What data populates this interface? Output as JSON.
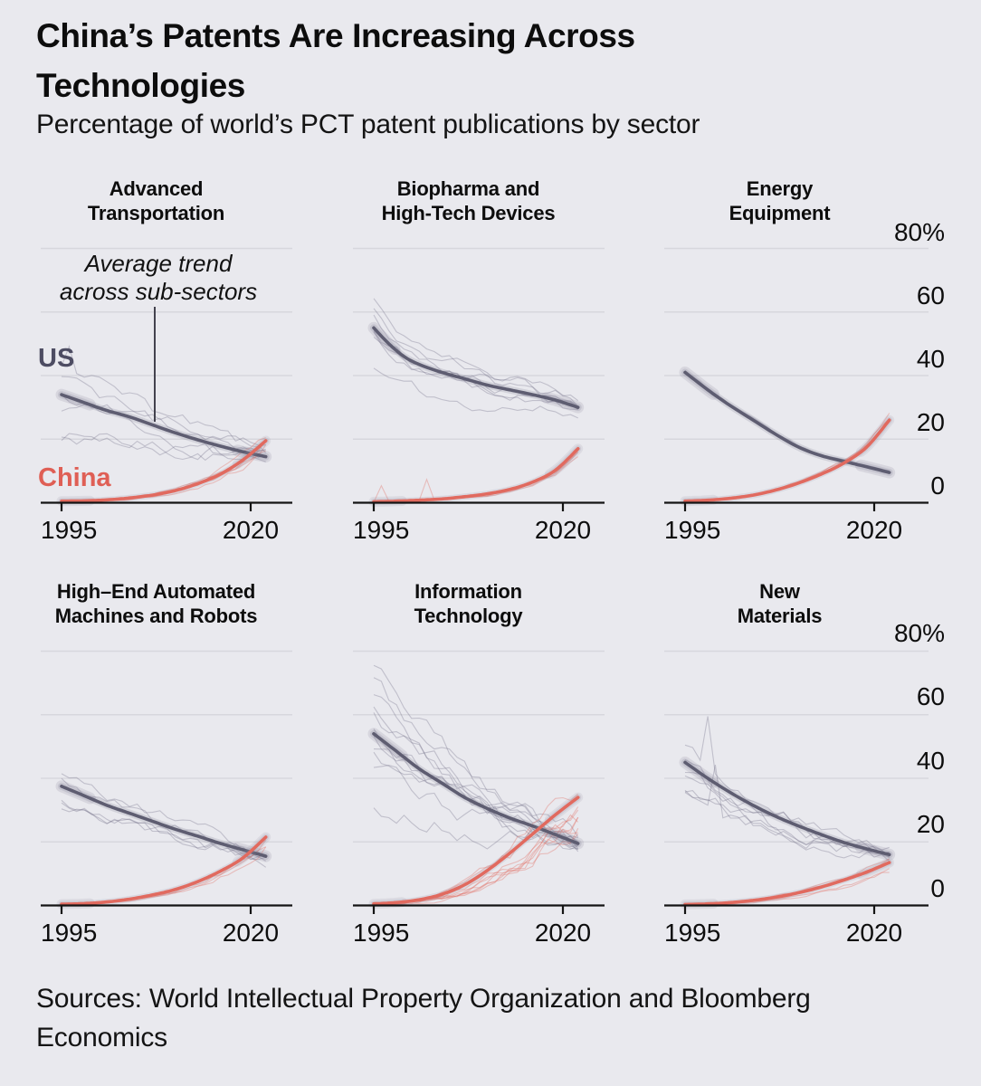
{
  "header": {
    "title": "China’s Patents Are Increasing Across Technologies",
    "subtitle": "Percentage of world’s PCT patent publications by sector"
  },
  "legend": {
    "us_label": "US",
    "china_label": "China"
  },
  "annotation": {
    "line1": "Average trend",
    "line2": "across sub-sectors"
  },
  "footer": {
    "sources": "Sources: World Intellectual Property Organization and Bloomberg Economics"
  },
  "axis": {
    "x_ticks": [
      "1995",
      "2020"
    ],
    "y_ticks": [
      "80%",
      "60",
      "40",
      "20",
      "0"
    ],
    "x_range": [
      1995,
      2022
    ],
    "y_range_pct": [
      0,
      80
    ],
    "gridlines_pct": [
      20,
      40,
      60,
      80
    ],
    "legend_position": "left-of-first-panel",
    "grid": "horizontal-only"
  },
  "colors": {
    "background": "#e9e9ee",
    "gridline": "#d7d7dd",
    "axis": "#141414",
    "text": "#0d0d0d",
    "us_trend": "#5e5d71",
    "us_label": "#4d4c62",
    "us_subsector": "rgba(98,97,122,0.30)",
    "us_band": "rgba(122,121,142,0.20)",
    "china_trend": "#e16a5f",
    "china_label": "#df5f55",
    "china_subsector": "rgba(226,112,102,0.38)",
    "china_band": "rgba(142,141,160,0.18)"
  },
  "chart_data": [
    {
      "type": "line",
      "title_lines": [
        "Advanced",
        "Transportation"
      ],
      "series": [
        {
          "name": "US",
          "points": [
            [
              1995,
              34
            ],
            [
              1998,
              31.5
            ],
            [
              2001,
              29
            ],
            [
              2004,
              27
            ],
            [
              2007,
              24.5
            ],
            [
              2010,
              22
            ],
            [
              2013,
              19.8
            ],
            [
              2016,
              17.8
            ],
            [
              2019,
              16
            ],
            [
              2022,
              14.5
            ]
          ]
        },
        {
          "name": "China",
          "points": [
            [
              1995,
              0.5
            ],
            [
              1998,
              0.6
            ],
            [
              2001,
              0.9
            ],
            [
              2004,
              1.5
            ],
            [
              2007,
              2.4
            ],
            [
              2010,
              3.8
            ],
            [
              2013,
              6
            ],
            [
              2016,
              9
            ],
            [
              2019,
              13.5
            ],
            [
              2022,
              19.5
            ]
          ]
        }
      ],
      "subsectors": {
        "seed": 7,
        "us": {
          "count": 6,
          "fmin": 0.62,
          "fmax": 1.28,
          "jitter": 2.0,
          "spike_prob": 0.03,
          "spike_amp": 12
        },
        "china": {
          "count": 5,
          "fmin": 0.5,
          "fmax": 1.35,
          "jitter": 0.8,
          "spike_prob": 0,
          "spike_amp": 0
        }
      }
    },
    {
      "type": "line",
      "title_lines": [
        "Biopharma and",
        "High-Tech Devices"
      ],
      "series": [
        {
          "name": "US",
          "points": [
            [
              1995,
              55
            ],
            [
              1997,
              50
            ],
            [
              1999,
              46
            ],
            [
              2001,
              43.5
            ],
            [
              2004,
              41
            ],
            [
              2007,
              39
            ],
            [
              2010,
              37
            ],
            [
              2013,
              35.5
            ],
            [
              2016,
              34
            ],
            [
              2019,
              32.3
            ],
            [
              2022,
              30
            ]
          ]
        },
        {
          "name": "China",
          "points": [
            [
              1995,
              0.3
            ],
            [
              1998,
              0.5
            ],
            [
              2001,
              0.8
            ],
            [
              2004,
              1.2
            ],
            [
              2007,
              1.9
            ],
            [
              2010,
              2.8
            ],
            [
              2013,
              4.2
            ],
            [
              2016,
              6.5
            ],
            [
              2019,
              10.2
            ],
            [
              2022,
              17
            ]
          ]
        }
      ],
      "subsectors": {
        "seed": 11,
        "us": {
          "count": 7,
          "fmin": 0.7,
          "fmax": 1.18,
          "jitter": 1.6,
          "spike_prob": 0,
          "spike_amp": 0
        },
        "china": {
          "count": 3,
          "fmin": 0.75,
          "fmax": 1.2,
          "jitter": 0.5,
          "spike_prob": 0.06,
          "spike_amp": 9
        }
      }
    },
    {
      "type": "line",
      "title_lines": [
        "Energy",
        "Equipment"
      ],
      "series": [
        {
          "name": "US",
          "points": [
            [
              1995,
              41
            ],
            [
              1998,
              35.5
            ],
            [
              2001,
              30.5
            ],
            [
              2004,
              26
            ],
            [
              2007,
              21.5
            ],
            [
              2010,
              17.5
            ],
            [
              2013,
              14.8
            ],
            [
              2016,
              13
            ],
            [
              2019,
              11.3
            ],
            [
              2022,
              9.5
            ]
          ]
        },
        {
          "name": "China",
          "points": [
            [
              1995,
              0.5
            ],
            [
              1998,
              0.8
            ],
            [
              2001,
              1.4
            ],
            [
              2004,
              2.4
            ],
            [
              2007,
              4
            ],
            [
              2010,
              6.2
            ],
            [
              2013,
              9
            ],
            [
              2016,
              12.5
            ],
            [
              2019,
              17.5
            ],
            [
              2022,
              26
            ]
          ]
        }
      ],
      "subsectors": {
        "seed": 3,
        "us": {
          "count": 2,
          "fmin": 0.95,
          "fmax": 1.05,
          "jitter": 0.4,
          "spike_prob": 0,
          "spike_amp": 0
        },
        "china": {
          "count": 2,
          "fmin": 0.9,
          "fmax": 1.1,
          "jitter": 0.3,
          "spike_prob": 0,
          "spike_amp": 0
        }
      }
    },
    {
      "type": "line",
      "title_lines": [
        "High–End Automated",
        "Machines and Robots"
      ],
      "series": [
        {
          "name": "US",
          "points": [
            [
              1995,
              37.5
            ],
            [
              1998,
              34.5
            ],
            [
              2001,
              31.5
            ],
            [
              2004,
              29
            ],
            [
              2007,
              26.5
            ],
            [
              2010,
              24
            ],
            [
              2013,
              21.8
            ],
            [
              2016,
              19.5
            ],
            [
              2019,
              17.5
            ],
            [
              2022,
              15.5
            ]
          ]
        },
        {
          "name": "China",
          "points": [
            [
              1995,
              0.4
            ],
            [
              1998,
              0.6
            ],
            [
              2001,
              1.1
            ],
            [
              2004,
              2
            ],
            [
              2007,
              3.3
            ],
            [
              2010,
              5
            ],
            [
              2013,
              7.5
            ],
            [
              2016,
              10.8
            ],
            [
              2019,
              15
            ],
            [
              2022,
              21.5
            ]
          ]
        }
      ],
      "subsectors": {
        "seed": 5,
        "us": {
          "count": 5,
          "fmin": 0.8,
          "fmax": 1.15,
          "jitter": 1.7,
          "spike_prob": 0,
          "spike_amp": 0
        },
        "china": {
          "count": 3,
          "fmin": 0.7,
          "fmax": 1.15,
          "jitter": 0.7,
          "spike_prob": 0,
          "spike_amp": 0
        }
      }
    },
    {
      "type": "line",
      "title_lines": [
        "Information",
        "Technology"
      ],
      "series": [
        {
          "name": "US",
          "points": [
            [
              1995,
              54
            ],
            [
              1998,
              48.5
            ],
            [
              2001,
              43
            ],
            [
              2004,
              38.5
            ],
            [
              2007,
              34
            ],
            [
              2010,
              30.5
            ],
            [
              2013,
              27.5
            ],
            [
              2016,
              25
            ],
            [
              2019,
              22.3
            ],
            [
              2022,
              19.5
            ]
          ]
        },
        {
          "name": "China",
          "points": [
            [
              1995,
              0.5
            ],
            [
              1998,
              0.9
            ],
            [
              2001,
              1.8
            ],
            [
              2004,
              3.5
            ],
            [
              2007,
              6.5
            ],
            [
              2010,
              11
            ],
            [
              2013,
              16.5
            ],
            [
              2016,
              22.5
            ],
            [
              2019,
              28.5
            ],
            [
              2022,
              34
            ]
          ]
        }
      ],
      "subsectors": {
        "seed": 13,
        "us": {
          "count": 11,
          "fmin": 0.55,
          "fmax": 1.42,
          "jitter": 2.6,
          "spike_prob": 0.02,
          "spike_amp": 10
        },
        "china": {
          "count": 9,
          "fmin": 0.35,
          "fmax": 1.3,
          "jitter": 1.4,
          "spike_prob": 0,
          "spike_amp": 0
        }
      }
    },
    {
      "type": "line",
      "title_lines": [
        "New",
        "Materials"
      ],
      "series": [
        {
          "name": "US",
          "points": [
            [
              1995,
              45
            ],
            [
              1998,
              40
            ],
            [
              2001,
              35.5
            ],
            [
              2004,
              31.5
            ],
            [
              2007,
              28
            ],
            [
              2010,
              25
            ],
            [
              2013,
              22.3
            ],
            [
              2016,
              19.8
            ],
            [
              2019,
              17.8
            ],
            [
              2022,
              16
            ]
          ]
        },
        {
          "name": "China",
          "points": [
            [
              1995,
              0.3
            ],
            [
              1998,
              0.5
            ],
            [
              2001,
              0.9
            ],
            [
              2004,
              1.6
            ],
            [
              2007,
              2.6
            ],
            [
              2010,
              4
            ],
            [
              2013,
              5.8
            ],
            [
              2016,
              8
            ],
            [
              2019,
              10.5
            ],
            [
              2022,
              13.5
            ]
          ]
        }
      ],
      "subsectors": {
        "seed": 29,
        "us": {
          "count": 7,
          "fmin": 0.72,
          "fmax": 1.2,
          "jitter": 2.0,
          "spike_prob": 0.06,
          "spike_amp": 22
        },
        "china": {
          "count": 4,
          "fmin": 0.6,
          "fmax": 1.2,
          "jitter": 0.6,
          "spike_prob": 0,
          "spike_amp": 0
        }
      }
    }
  ]
}
